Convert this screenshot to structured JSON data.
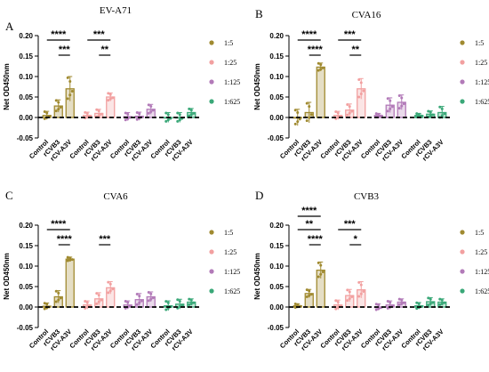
{
  "colors": {
    "1:5": "#a08a30",
    "1:25": "#f2a0a0",
    "1:125": "#b27ab8",
    "1:625": "#3aa878"
  },
  "chart_data": [
    {
      "panel": "A",
      "title": "EV-A71",
      "type": "bar",
      "ylabel": "Net OD450nm",
      "ylim": [
        -0.05,
        0.2
      ],
      "yticks": [
        "-0.05",
        "0.00",
        "0.05",
        "0.10",
        "0.15",
        "0.20"
      ],
      "categories": [
        "Control",
        "rCVB3",
        "rCV-A3V"
      ],
      "legend": [
        "1:5",
        "1:25",
        "1:125",
        "1:625"
      ],
      "series": [
        {
          "name": "1:5",
          "values": [
            0.005,
            0.028,
            0.07
          ],
          "errors": [
            0.01,
            0.015,
            0.03
          ]
        },
        {
          "name": "1:25",
          "values": [
            0.005,
            0.01,
            0.05
          ],
          "errors": [
            0.008,
            0.01,
            0.01
          ]
        },
        {
          "name": "1:125",
          "values": [
            0.002,
            0.003,
            0.02
          ],
          "errors": [
            0.01,
            0.01,
            0.012
          ]
        },
        {
          "name": "1:625",
          "values": [
            0.0,
            0.0,
            0.012
          ],
          "errors": [
            0.012,
            0.012,
            0.01
          ]
        }
      ],
      "significance": [
        {
          "text": "****",
          "level": "upper",
          "group": 0
        },
        {
          "text": "***",
          "level": "lower",
          "group": 0
        },
        {
          "text": "***",
          "level": "upper",
          "group": 1
        },
        {
          "text": "**",
          "level": "lower",
          "group": 1
        }
      ]
    },
    {
      "panel": "B",
      "title": "CVA16",
      "type": "bar",
      "ylabel": "Net OD450nm",
      "ylim": [
        -0.05,
        0.2
      ],
      "yticks": [
        "-0.05",
        "0.00",
        "0.05",
        "0.10",
        "0.15",
        "0.20"
      ],
      "categories": [
        "Control",
        "rCVB3",
        "rCV-A3V"
      ],
      "legend": [
        "1:5",
        "1:25",
        "1:125",
        "1:625"
      ],
      "series": [
        {
          "name": "1:5",
          "values": [
            0.0,
            0.012,
            0.123
          ],
          "errors": [
            0.02,
            0.025,
            0.01
          ]
        },
        {
          "name": "1:25",
          "values": [
            0.005,
            0.018,
            0.07
          ],
          "errors": [
            0.01,
            0.015,
            0.025
          ]
        },
        {
          "name": "1:125",
          "values": [
            0.005,
            0.03,
            0.037
          ],
          "errors": [
            0.005,
            0.018,
            0.018
          ]
        },
        {
          "name": "1:625",
          "values": [
            0.005,
            0.008,
            0.012
          ],
          "errors": [
            0.005,
            0.008,
            0.015
          ]
        }
      ],
      "significance": [
        {
          "text": "****",
          "level": "upper",
          "group": 0
        },
        {
          "text": "****",
          "level": "lower",
          "group": 0
        },
        {
          "text": "***",
          "level": "upper",
          "group": 1
        },
        {
          "text": "**",
          "level": "lower",
          "group": 1
        }
      ]
    },
    {
      "panel": "C",
      "title": "CVA6",
      "type": "bar",
      "ylabel": "Net OD450nm",
      "ylim": [
        -0.05,
        0.2
      ],
      "yticks": [
        "-0.05",
        "0.00",
        "0.05",
        "0.10",
        "0.15",
        "0.20"
      ],
      "categories": [
        "Control",
        "rCVB3",
        "rCV-A3V"
      ],
      "legend": [
        "1:5",
        "1:25",
        "1:125",
        "1:625"
      ],
      "series": [
        {
          "name": "1:5",
          "values": [
            0.002,
            0.025,
            0.117
          ],
          "errors": [
            0.008,
            0.015,
            0.005
          ]
        },
        {
          "name": "1:25",
          "values": [
            0.005,
            0.02,
            0.047
          ],
          "errors": [
            0.01,
            0.015,
            0.015
          ]
        },
        {
          "name": "1:125",
          "values": [
            0.005,
            0.018,
            0.025
          ],
          "errors": [
            0.01,
            0.015,
            0.012
          ]
        },
        {
          "name": "1:625",
          "values": [
            0.003,
            0.007,
            0.012
          ],
          "errors": [
            0.012,
            0.012,
            0.008
          ]
        }
      ],
      "significance": [
        {
          "text": "****",
          "level": "upper",
          "group": 0
        },
        {
          "text": "****",
          "level": "lower",
          "group": 0
        },
        {
          "text": "***",
          "level": "lower",
          "group": 1
        }
      ]
    },
    {
      "panel": "D",
      "title": "CVB3",
      "type": "bar",
      "ylabel": "Net OD450nm",
      "ylim": [
        -0.05,
        0.2
      ],
      "yticks": [
        "-0.05",
        "0.00",
        "0.05",
        "0.10",
        "0.15",
        "0.20"
      ],
      "categories": [
        "Control",
        "rCVB3",
        "rCV-A3V"
      ],
      "legend": [
        "1:5",
        "1:25",
        "1:125",
        "1:625"
      ],
      "series": [
        {
          "name": "1:5",
          "values": [
            0.003,
            0.033,
            0.09
          ],
          "errors": [
            0.005,
            0.01,
            0.02
          ]
        },
        {
          "name": "1:25",
          "values": [
            0.005,
            0.028,
            0.042
          ],
          "errors": [
            0.012,
            0.015,
            0.02
          ]
        },
        {
          "name": "1:125",
          "values": [
            0.0,
            0.005,
            0.012
          ],
          "errors": [
            0.008,
            0.01,
            0.008
          ]
        },
        {
          "name": "1:625",
          "values": [
            0.003,
            0.013,
            0.012
          ],
          "errors": [
            0.008,
            0.01,
            0.008
          ]
        }
      ],
      "significance": [
        {
          "text": "****",
          "level": "top",
          "group": 0
        },
        {
          "text": "**",
          "level": "upper",
          "group": 0
        },
        {
          "text": "****",
          "level": "lower",
          "group": 0
        },
        {
          "text": "***",
          "level": "upper",
          "group": 1
        },
        {
          "text": "*",
          "level": "lower",
          "group": 1
        }
      ]
    }
  ]
}
